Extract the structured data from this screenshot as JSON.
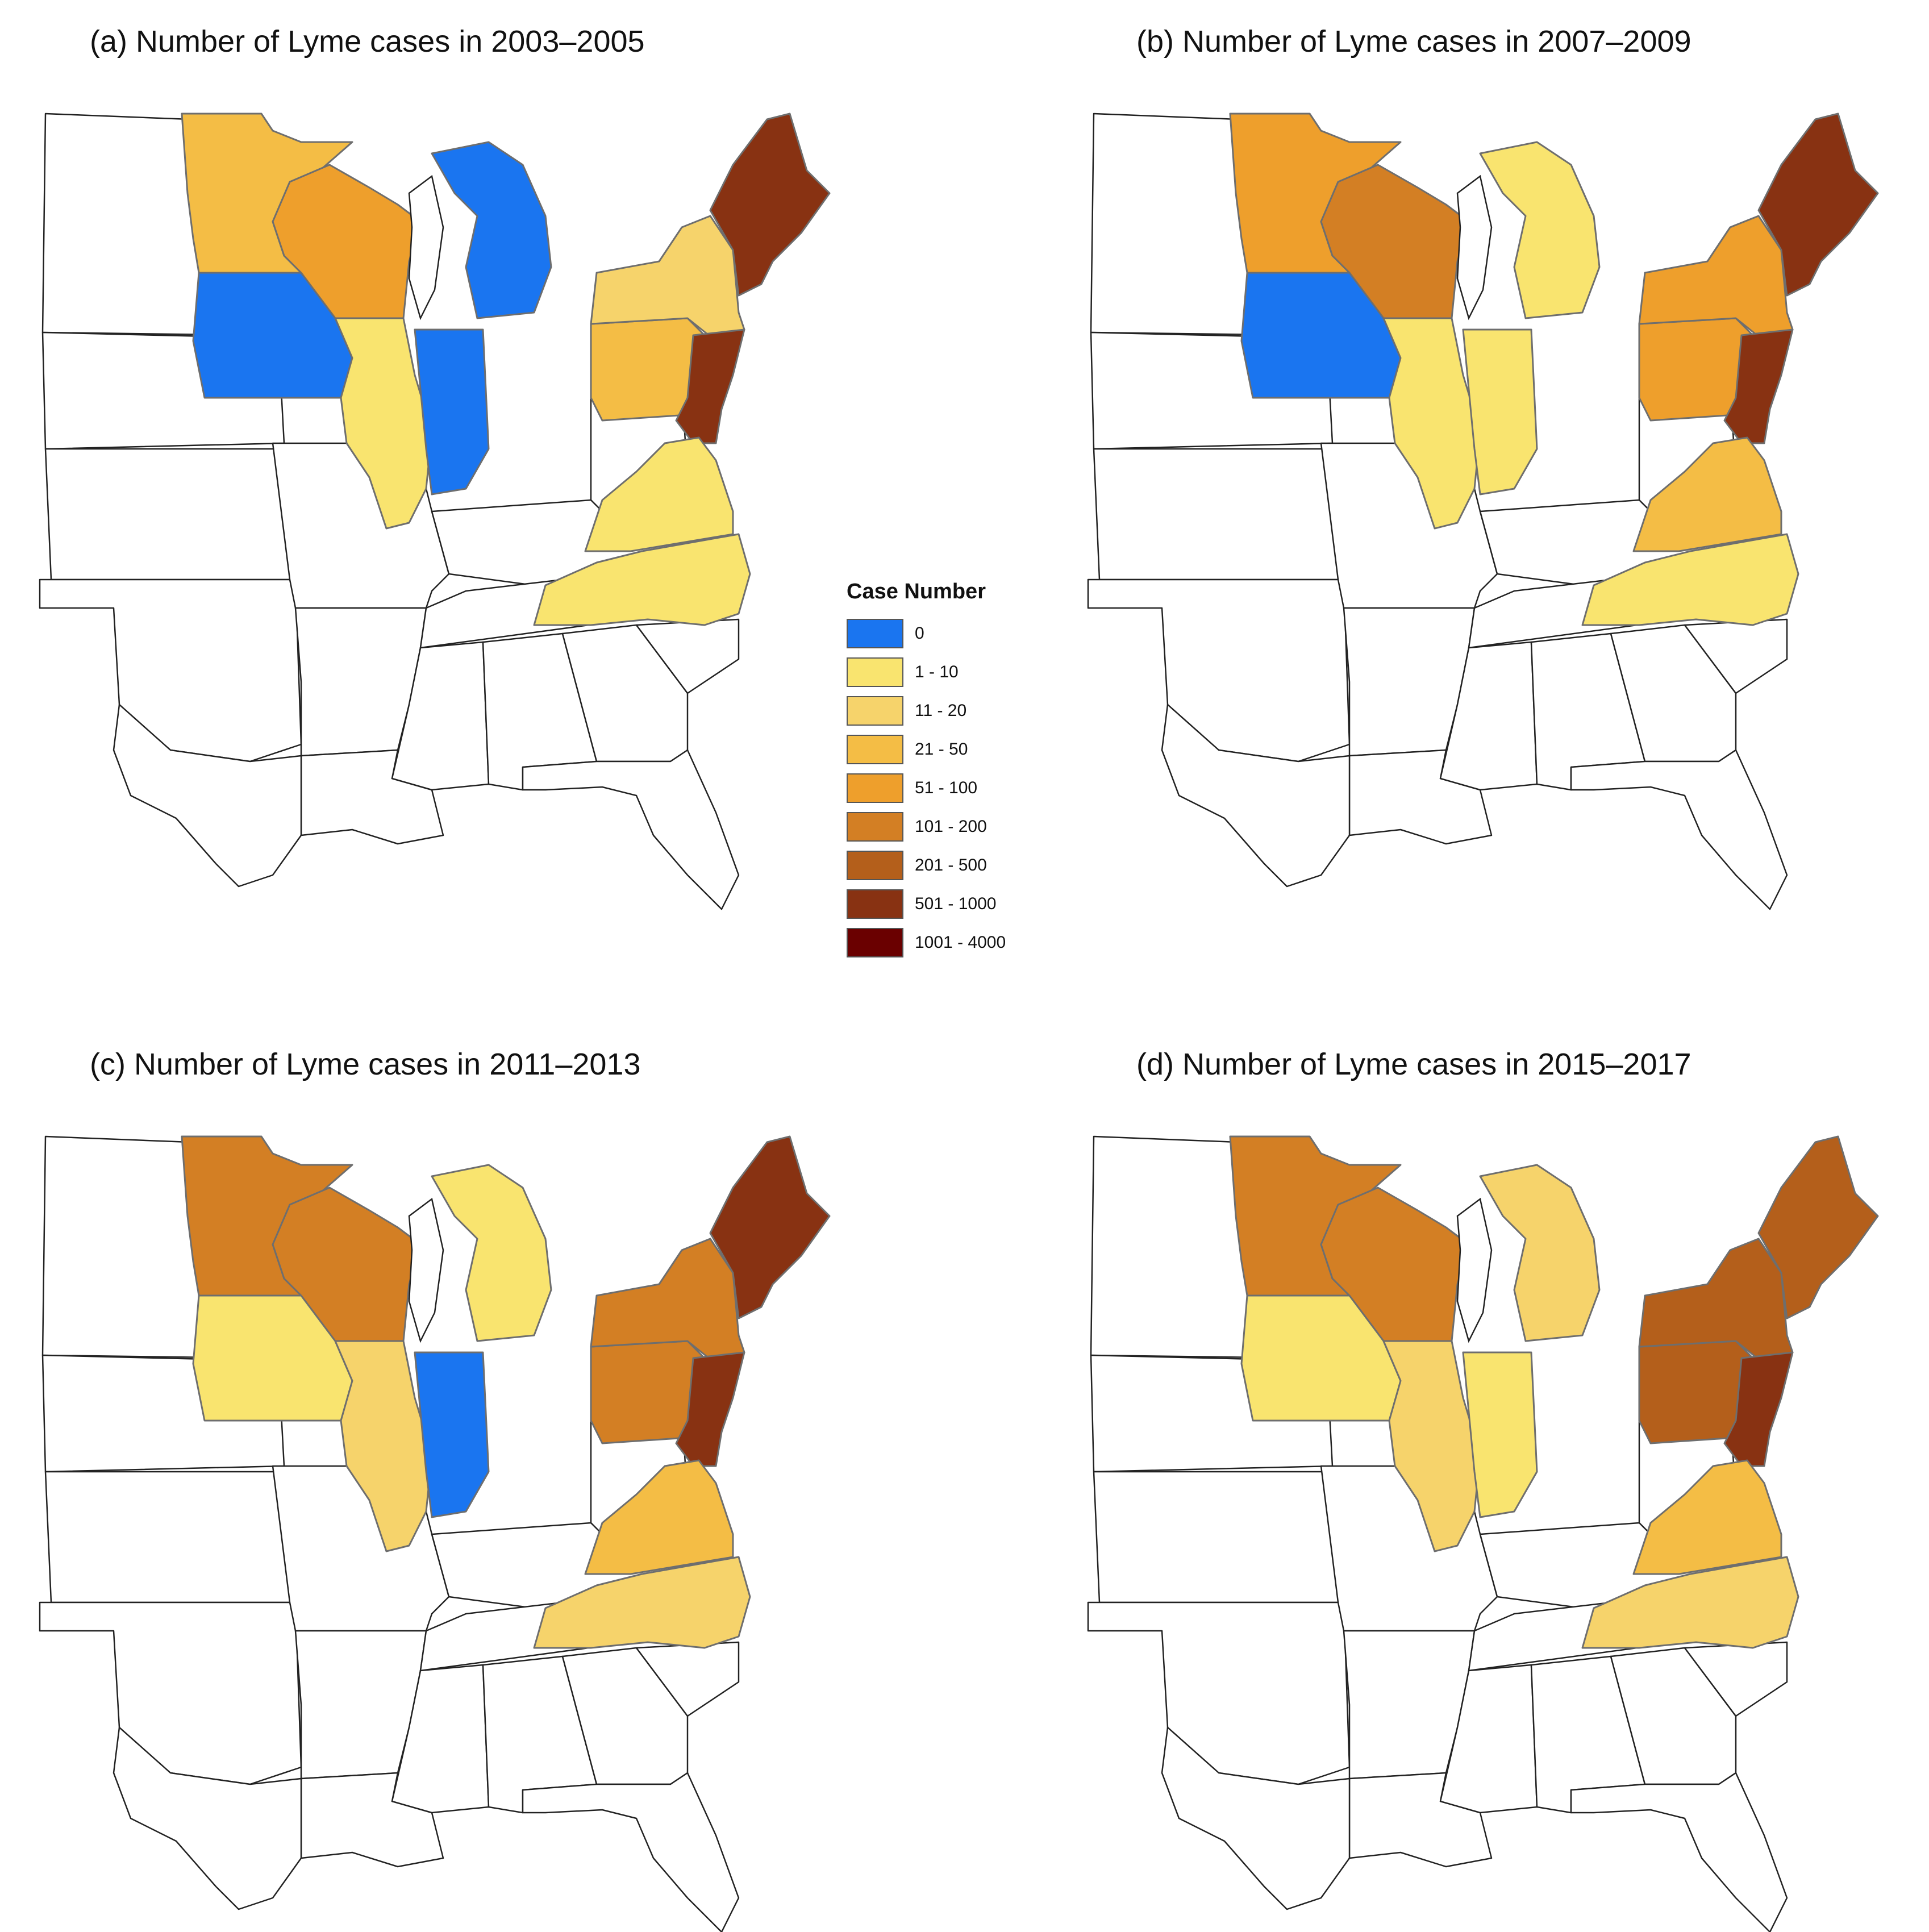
{
  "panels": [
    {
      "title": "(a) Number of Lyme cases in 2003–2005"
    },
    {
      "title": "(b) Number of Lyme cases in 2007–2009"
    },
    {
      "title": "(c) Number of Lyme cases in 2011–2013"
    },
    {
      "title": "(d) Number of Lyme cases in 2015–2017"
    }
  ],
  "legend": {
    "title": "Case Number",
    "classes": [
      {
        "label": "0",
        "color": "#1a75f0"
      },
      {
        "label": "1 - 10",
        "color": "#f9e46f"
      },
      {
        "label": "11 - 20",
        "color": "#f6d36b"
      },
      {
        "label": "21 - 50",
        "color": "#f4bd45"
      },
      {
        "label": "51 - 100",
        "color": "#ee9f2c"
      },
      {
        "label": "101 - 200",
        "color": "#d37f24"
      },
      {
        "label": "201 - 500",
        "color": "#b45f1b"
      },
      {
        "label": "501 - 1000",
        "color": "#883212"
      },
      {
        "label": "1001 - 4000",
        "color": "#6a0000"
      }
    ]
  },
  "map_data": {
    "regions": [
      "Minnesota",
      "Wisconsin",
      "Michigan",
      "Iowa",
      "Illinois",
      "Indiana",
      "Pennsylvania",
      "New York",
      "New England",
      "Mid-Atlantic coast",
      "Virginia",
      "North Carolina"
    ],
    "classes_by_panel": [
      {
        "Minnesota": "21 - 50",
        "Wisconsin": "51 - 100",
        "Michigan": "0",
        "Iowa": "0",
        "Illinois": "1 - 10",
        "Indiana": "0",
        "Pennsylvania": "21 - 50",
        "New York": "11 - 20",
        "New England": "501 - 1000",
        "Mid-Atlantic coast": "501 - 1000",
        "Virginia": "1 - 10",
        "North Carolina": "1 - 10"
      },
      {
        "Minnesota": "51 - 100",
        "Wisconsin": "101 - 200",
        "Michigan": "1 - 10",
        "Iowa": "0",
        "Illinois": "1 - 10",
        "Indiana": "1 - 10",
        "Pennsylvania": "51 - 100",
        "New York": "51 - 100",
        "New England": "501 - 1000",
        "Mid-Atlantic coast": "501 - 1000",
        "Virginia": "21 - 50",
        "North Carolina": "1 - 10"
      },
      {
        "Minnesota": "101 - 200",
        "Wisconsin": "101 - 200",
        "Michigan": "1 - 10",
        "Iowa": "1 - 10",
        "Illinois": "11 - 20",
        "Indiana": "0",
        "Pennsylvania": "101 - 200",
        "New York": "101 - 200",
        "New England": "501 - 1000",
        "Mid-Atlantic coast": "501 - 1000",
        "Virginia": "21 - 50",
        "North Carolina": "11 - 20"
      },
      {
        "Minnesota": "101 - 200",
        "Wisconsin": "101 - 200",
        "Michigan": "11 - 20",
        "Iowa": "1 - 10",
        "Illinois": "11 - 20",
        "Indiana": "1 - 10",
        "Pennsylvania": "201 - 500",
        "New York": "201 - 500",
        "New England": "201 - 500",
        "Mid-Atlantic coast": "501 - 1000",
        "Virginia": "21 - 50",
        "North Carolina": "11 - 20"
      }
    ]
  }
}
